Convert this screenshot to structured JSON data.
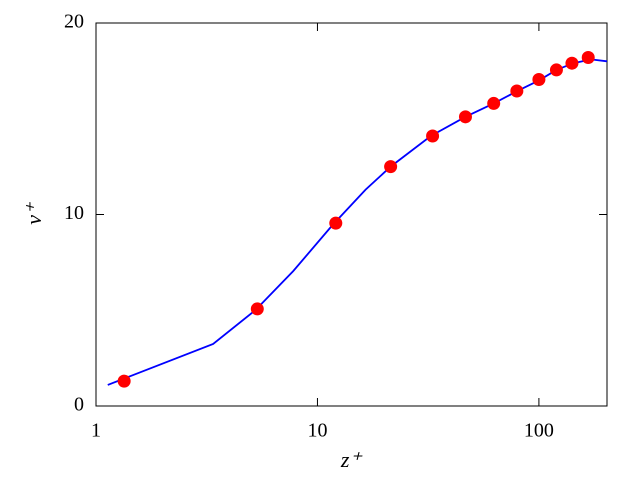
{
  "chart_data": {
    "type": "line",
    "xlabel": "z⁺",
    "ylabel": "v⁺",
    "xscale": "log",
    "xlim": [
      1,
      203
    ],
    "xticks": [
      1,
      10,
      100
    ],
    "ylim": [
      0,
      20
    ],
    "yticks": [
      0,
      10,
      20
    ],
    "series": [
      {
        "mode": "line",
        "color": "#0000ff",
        "x": [
          1.13,
          3.38,
          5.24,
          7.78,
          11.7,
          16.5,
          21.4,
          32.5,
          46.6,
          62.5,
          80,
          100,
          120,
          143,
          172,
          203
        ],
        "values": [
          1.1,
          3.24,
          5.0,
          7.05,
          9.45,
          11.3,
          12.5,
          14.1,
          15.1,
          15.8,
          16.45,
          17.0,
          17.55,
          17.9,
          18.1,
          18.0
        ]
      },
      {
        "mode": "markers",
        "color": "#ff0000",
        "x": [
          1.34,
          5.35,
          12.1,
          21.4,
          33.1,
          46.6,
          62.5,
          79.5,
          100,
          120,
          141,
          167
        ],
        "values": [
          1.3,
          5.07,
          9.55,
          12.5,
          14.1,
          15.1,
          15.8,
          16.45,
          17.05,
          17.55,
          17.9,
          18.2
        ]
      }
    ]
  }
}
